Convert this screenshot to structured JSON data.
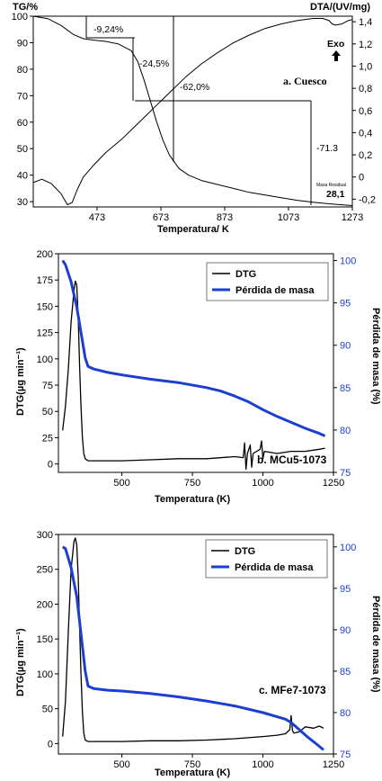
{
  "chart_data": [
    {
      "type": "line",
      "panel_label": "a. Cuesco",
      "xlabel": "Temperatura/ K",
      "ylabel": "TG/%",
      "y2label": "DTA/(UV/mg)",
      "xlim": [
        273,
        1273
      ],
      "ylim": [
        28,
        100
      ],
      "y2lim": [
        -0.27,
        1.45
      ],
      "xticks": [
        "473",
        "673",
        "873",
        "1073",
        "1273"
      ],
      "yticks": [
        "100",
        "90",
        "80",
        "70",
        "60",
        "50",
        "40",
        "30"
      ],
      "y2ticks": [
        "1,4",
        "1,2",
        "1,0",
        "0,8",
        "0,6",
        "0,4",
        "0,2",
        "0",
        "-0,2"
      ],
      "annotations": [
        "-9,24%",
        "-24,5%",
        "-62,0%",
        "-71.3",
        "Masa Residual",
        "28,1",
        "Exo"
      ],
      "series": [
        {
          "axis": "left",
          "x": [
            273,
            320,
            360,
            400,
            430,
            460,
            500,
            540,
            580,
            600,
            620,
            640,
            660,
            680,
            700,
            730,
            760,
            800,
            850,
            900,
            950,
            1000,
            1050,
            1100,
            1150,
            1200,
            1250,
            1273
          ],
          "y": [
            100,
            99,
            96.5,
            93,
            91.5,
            91,
            90.5,
            89.5,
            87,
            83,
            76,
            68,
            60,
            53,
            47.5,
            42.5,
            40,
            38,
            36.5,
            35,
            33.5,
            32.5,
            31.5,
            30.5,
            29.8,
            29.2,
            28.7,
            28.5
          ]
        },
        {
          "axis": "right",
          "x": [
            273,
            300,
            330,
            360,
            380,
            395,
            410,
            430,
            460,
            500,
            550,
            600,
            650,
            700,
            750,
            800,
            850,
            900,
            950,
            1000,
            1050,
            1100,
            1150,
            1180,
            1200,
            1210,
            1220,
            1240,
            1260,
            1273
          ],
          "y": [
            -0.05,
            -0.02,
            -0.06,
            -0.15,
            -0.25,
            -0.23,
            -0.12,
            0.0,
            0.1,
            0.22,
            0.34,
            0.48,
            0.62,
            0.76,
            0.9,
            1.02,
            1.12,
            1.21,
            1.28,
            1.34,
            1.38,
            1.41,
            1.43,
            1.43,
            1.41,
            1.38,
            1.37,
            1.38,
            1.41,
            1.42
          ]
        }
      ]
    },
    {
      "type": "line",
      "panel_label": "b. MCu5-1073",
      "xlabel": "Temperatura (K)",
      "ylabel": "DTG(µg min⁻¹)",
      "y2label": "Pérdida de masa (%)",
      "xlim": [
        275,
        1250
      ],
      "ylim": [
        -8,
        200
      ],
      "y2lim": [
        75,
        100.8
      ],
      "xticks": [
        "500",
        "750",
        "1000",
        "1250"
      ],
      "yticks": [
        "200",
        "175",
        "150",
        "125",
        "100",
        "75",
        "50",
        "25",
        "0"
      ],
      "y2ticks": [
        "100",
        "95",
        "90",
        "85",
        "80",
        "75"
      ],
      "legend_location": "top-center",
      "series": [
        {
          "name": "DTG",
          "color": "#000000",
          "axis": "left",
          "x": [
            290,
            300,
            310,
            320,
            330,
            335,
            340,
            345,
            350,
            355,
            360,
            365,
            370,
            380,
            400,
            500,
            600,
            700,
            800,
            900,
            930,
            935,
            940,
            945,
            955,
            960,
            965,
            990,
            995,
            1000,
            1005,
            1050,
            1100,
            1150,
            1200,
            1220
          ],
          "y": [
            32,
            55,
            90,
            135,
            165,
            174,
            170,
            140,
            95,
            55,
            25,
            10,
            5,
            3,
            3,
            3,
            4,
            5,
            5,
            7,
            6,
            20,
            -5,
            10,
            18,
            -3,
            10,
            14,
            22,
            5,
            12,
            10,
            12,
            12,
            14,
            15
          ]
        },
        {
          "name": "Pérdida de masa",
          "color": "#1c3fcf",
          "axis": "right",
          "x": [
            290,
            300,
            320,
            340,
            360,
            370,
            380,
            400,
            450,
            500,
            600,
            700,
            800,
            850,
            900,
            950,
            1000,
            1050,
            1100,
            1150,
            1200,
            1220
          ],
          "y": [
            100,
            99.5,
            97.5,
            94.5,
            90.5,
            88.5,
            87.5,
            87.2,
            86.8,
            86.5,
            86.0,
            85.6,
            85.0,
            84.6,
            84.0,
            83.3,
            82.4,
            81.6,
            80.9,
            80.2,
            79.6,
            79.3
          ]
        }
      ]
    },
    {
      "type": "line",
      "panel_label": "c. MFe7-1073",
      "xlabel": "Temperatura (K)",
      "ylabel": "DTG(µg min⁻¹)",
      "y2label": "Pérdida de masa (%)",
      "xlim": [
        275,
        1250
      ],
      "ylim": [
        -15,
        300
      ],
      "y2lim": [
        75,
        101.5
      ],
      "xticks": [
        "500",
        "750",
        "1000",
        "1250"
      ],
      "yticks": [
        "300",
        "250",
        "200",
        "150",
        "100",
        "50",
        "0"
      ],
      "y2ticks": [
        "100",
        "95",
        "90",
        "85",
        "80",
        "75"
      ],
      "legend_location": "top-center",
      "series": [
        {
          "name": "DTG",
          "color": "#000000",
          "axis": "left",
          "x": [
            290,
            300,
            310,
            320,
            330,
            335,
            340,
            345,
            350,
            355,
            360,
            365,
            370,
            380,
            400,
            500,
            600,
            700,
            800,
            900,
            1000,
            1050,
            1080,
            1095,
            1100,
            1105,
            1110,
            1130,
            1150,
            1180,
            1200,
            1215
          ],
          "y": [
            10,
            60,
            160,
            250,
            290,
            295,
            285,
            240,
            170,
            100,
            45,
            15,
            5,
            3,
            3,
            3,
            4,
            4,
            5,
            7,
            10,
            12,
            14,
            20,
            40,
            18,
            15,
            17,
            24,
            22,
            25,
            22
          ]
        },
        {
          "name": "Pérdida de masa",
          "color": "#1c3fcf",
          "axis": "right",
          "x": [
            290,
            300,
            320,
            340,
            360,
            370,
            380,
            400,
            450,
            500,
            600,
            700,
            800,
            900,
            1000,
            1050,
            1080,
            1100,
            1130,
            1160,
            1190,
            1215
          ],
          "y": [
            100,
            99.8,
            97.5,
            94,
            88,
            85,
            83.2,
            82.9,
            82.7,
            82.6,
            82.3,
            81.9,
            81.4,
            80.8,
            80.0,
            79.5,
            79.2,
            78.8,
            77.9,
            77.0,
            76.2,
            75.5
          ]
        }
      ]
    }
  ]
}
